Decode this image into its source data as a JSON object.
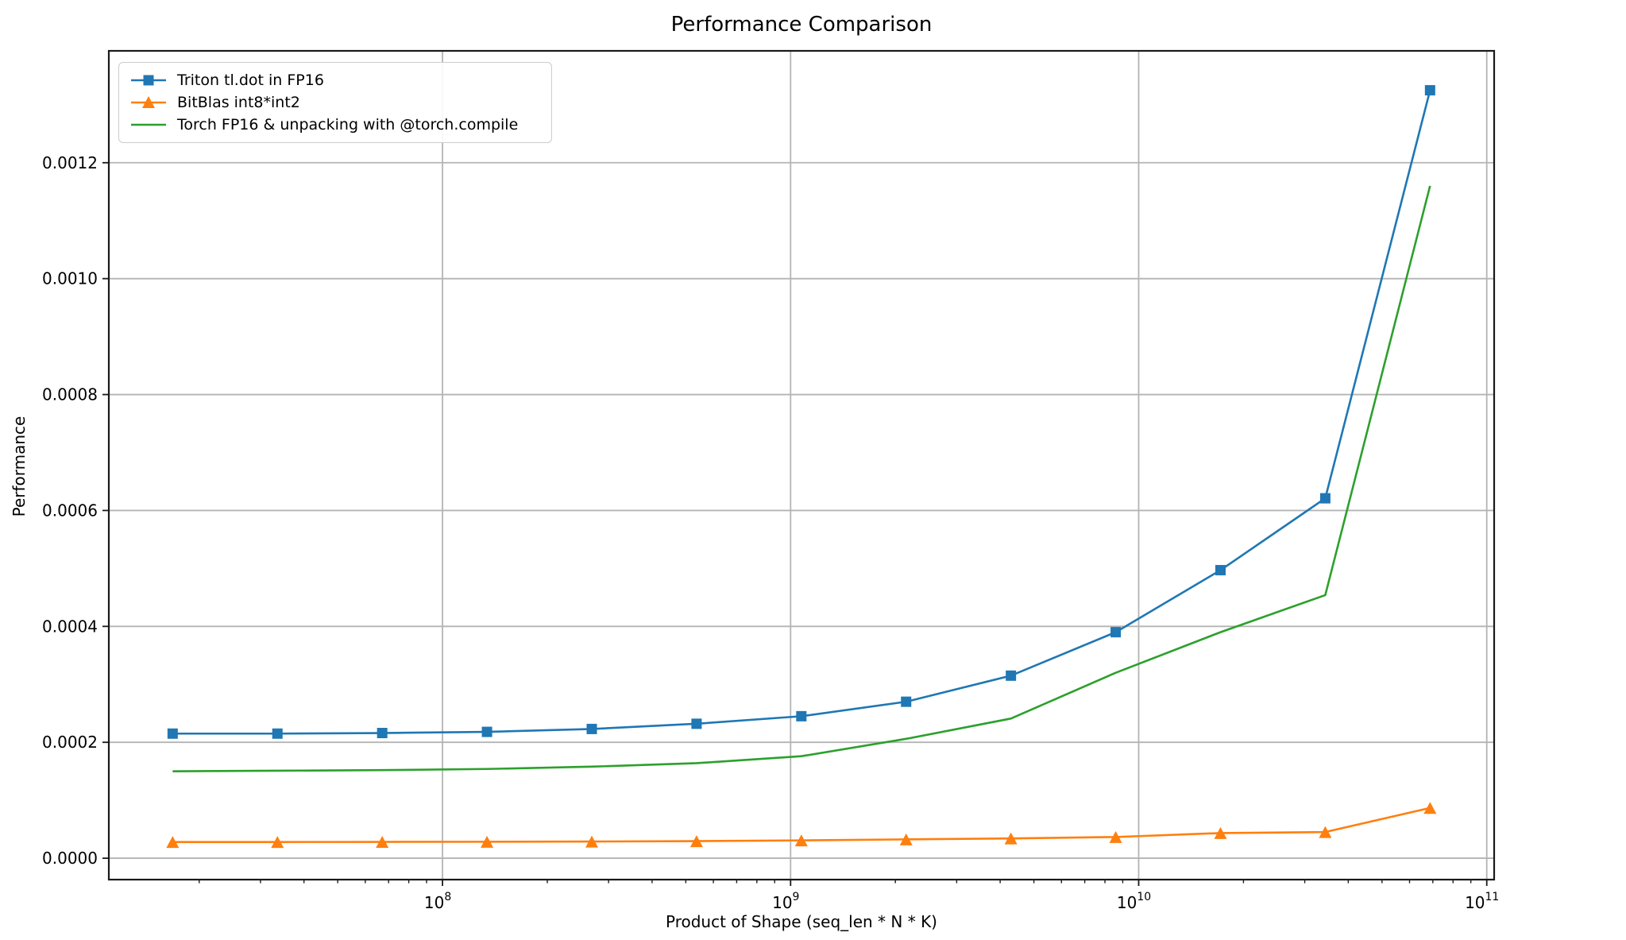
{
  "chart_data": {
    "type": "line",
    "title": "Performance Comparison",
    "xlabel": "Product of Shape (seq_len * N * K)",
    "ylabel": "Performance",
    "xscale": "log",
    "grid": true,
    "legend_position": "upper-left",
    "xlim": [
      11000000,
      105000000000
    ],
    "ylim": [
      -3.69e-05,
      0.001393
    ],
    "x": [
      16777216,
      33554432,
      67108864,
      134217728,
      268435456,
      536870912,
      1073741824,
      2147483648,
      4294967296,
      8589934592,
      17179869184,
      34359738368,
      68719476736
    ],
    "series": [
      {
        "name": "Triton tl.dot in FP16",
        "color": "#1f77b4",
        "marker": "square",
        "values": [
          0.000215,
          0.000215,
          0.000216,
          0.000218,
          0.000223,
          0.000232,
          0.000245,
          0.00027,
          0.000315,
          0.00039,
          0.000497,
          0.000621,
          0.001325
        ]
      },
      {
        "name": "BitBlas int8*int2",
        "color": "#ff7f0e",
        "marker": "triangle",
        "values": [
          2.8e-05,
          2.8e-05,
          2.82e-05,
          2.84e-05,
          2.88e-05,
          2.95e-05,
          3.08e-05,
          3.25e-05,
          3.42e-05,
          3.66e-05,
          4.34e-05,
          4.52e-05,
          8.68e-05
        ]
      },
      {
        "name": "Torch FP16 & unpacking with @torch.compile",
        "color": "#2ca02c",
        "marker": "none",
        "values": [
          0.00015,
          0.000151,
          0.000152,
          0.000154,
          0.000158,
          0.000164,
          0.000176,
          0.000206,
          0.000241,
          0.00032,
          0.00039,
          0.000454,
          0.00116
        ]
      }
    ],
    "x_ticks": {
      "base": "10",
      "major_exponents": [
        8,
        9,
        10,
        11
      ],
      "minor_multiples": [
        2,
        3,
        4,
        5,
        6,
        7,
        8,
        9
      ]
    },
    "y_ticks": {
      "values": [
        0.0,
        0.0002,
        0.0004,
        0.0006,
        0.0008,
        0.001,
        0.0012
      ],
      "labels": [
        "0.0000",
        "0.0002",
        "0.0004",
        "0.0006",
        "0.0008",
        "0.0010",
        "0.0012"
      ]
    },
    "colors": {
      "grid": "#b4b4b4",
      "spine": "#1a1a1a",
      "text": "#000000",
      "legend_border": "#cccccc"
    }
  }
}
